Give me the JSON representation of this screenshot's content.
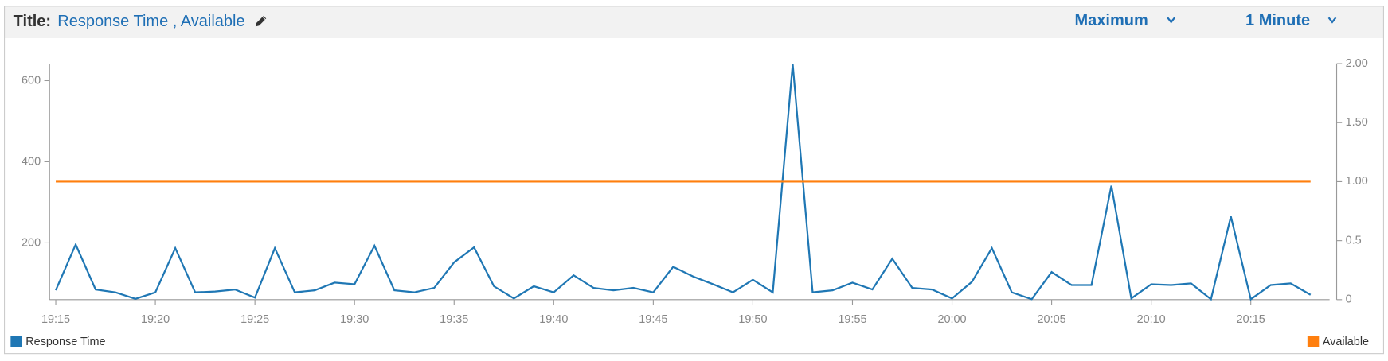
{
  "header": {
    "label": "Title:",
    "statistic": "Maximum",
    "period": "1 Minute"
  },
  "chart_data": {
    "type": "line",
    "title": "Response Time , Available",
    "x": [
      "19:15",
      "19:16",
      "19:17",
      "19:18",
      "19:19",
      "19:20",
      "19:21",
      "19:22",
      "19:23",
      "19:24",
      "19:25",
      "19:26",
      "19:27",
      "19:28",
      "19:29",
      "19:30",
      "19:31",
      "19:32",
      "19:33",
      "19:34",
      "19:35",
      "19:36",
      "19:37",
      "19:38",
      "19:39",
      "19:40",
      "19:41",
      "19:42",
      "19:43",
      "19:44",
      "19:45",
      "19:46",
      "19:47",
      "19:48",
      "19:49",
      "19:50",
      "19:51",
      "19:52",
      "19:53",
      "19:54",
      "19:55",
      "19:56",
      "19:57",
      "19:58",
      "19:59",
      "20:00",
      "20:01",
      "20:02",
      "20:03",
      "20:04",
      "20:05",
      "20:06",
      "20:07",
      "20:08",
      "20:09",
      "20:10",
      "20:11",
      "20:12",
      "20:13",
      "20:14",
      "20:15",
      "20:16",
      "20:17",
      "20:18"
    ],
    "xlim": [
      "19:15",
      "20:19"
    ],
    "xticks": [
      "19:15",
      "19:20",
      "19:25",
      "19:30",
      "19:35",
      "19:40",
      "19:45",
      "19:50",
      "19:55",
      "20:00",
      "20:05",
      "20:10",
      "20:15"
    ],
    "ylim": [
      60,
      642
    ],
    "yticks": [
      200,
      400,
      600
    ],
    "y2lim": [
      0,
      2
    ],
    "y2ticks": [
      0,
      0.5,
      {
        "value": 1,
        "label": "1.00"
      },
      {
        "value": 1.5,
        "label": "1.50"
      },
      {
        "value": 2,
        "label": "2.00"
      }
    ],
    "grid": false,
    "series": [
      {
        "name": "Response Time",
        "color": "#1f77b4",
        "values": [
          83,
          196,
          85,
          78,
          62,
          78,
          187,
          78,
          80,
          85,
          65,
          187,
          78,
          83,
          102,
          98,
          193,
          83,
          78,
          89,
          152,
          189,
          93,
          63,
          93,
          78,
          120,
          89,
          83,
          89,
          78,
          141,
          117,
          98,
          78,
          109,
          78,
          641,
          78,
          83,
          102,
          85,
          161,
          89,
          85,
          63,
          104,
          187,
          78,
          61,
          128,
          96,
          96,
          341,
          63,
          98,
          96,
          100,
          61,
          265,
          61,
          96,
          100,
          72
        ]
      },
      {
        "name": "Available",
        "color": "#ff7f0e",
        "axis": "y2",
        "values": [
          1,
          1,
          1,
          1,
          1,
          1,
          1,
          1,
          1,
          1,
          1,
          1,
          1,
          1,
          1,
          1,
          1,
          1,
          1,
          1,
          1,
          1,
          1,
          1,
          1,
          1,
          1,
          1,
          1,
          1,
          1,
          1,
          1,
          1,
          1,
          1,
          1,
          1,
          1,
          1,
          1,
          1,
          1,
          1,
          1,
          1,
          1,
          1,
          1,
          1,
          1,
          1,
          1,
          1,
          1,
          1,
          1,
          1,
          1,
          1,
          1,
          1,
          1,
          1
        ]
      }
    ]
  }
}
